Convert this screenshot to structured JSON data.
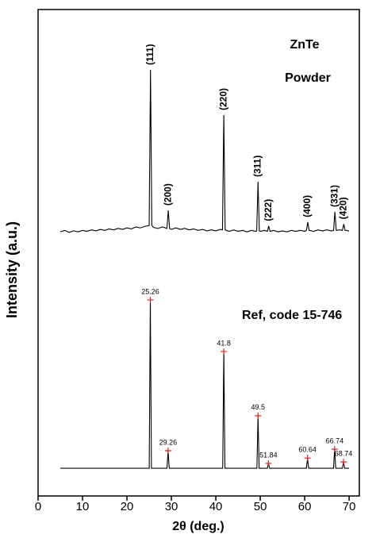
{
  "chart_data": {
    "type": "line",
    "title": "ZnTe",
    "x_label": "2θ (deg.)",
    "y_label": "Intensity (a.u.)",
    "xlim": [
      0,
      72.3
    ],
    "ylim": [
      0,
      100
    ],
    "xticks": [
      0,
      10,
      20,
      30,
      40,
      50,
      60,
      70
    ],
    "series": [
      {
        "name": "Powder",
        "color": "#000000",
        "x": [
          5,
          6,
          7,
          8,
          9,
          10,
          11,
          12,
          13,
          14,
          15,
          16,
          17,
          18,
          19,
          20,
          21,
          22,
          23,
          24,
          25.0,
          25.3,
          25.6,
          26,
          27,
          28,
          29.0,
          29.3,
          29.6,
          30,
          31,
          32,
          33,
          34,
          35,
          36,
          37,
          38,
          39,
          40,
          41,
          41.5,
          41.8,
          42.1,
          43,
          44,
          45,
          46,
          47,
          48,
          49,
          49.2,
          49.5,
          49.8,
          50,
          51,
          51.6,
          51.9,
          52.2,
          53,
          54,
          55,
          56,
          57,
          58,
          59,
          60,
          60.4,
          60.7,
          61.0,
          62,
          63,
          64,
          65,
          66,
          66.5,
          66.8,
          67.1,
          68,
          68.5,
          68.8,
          69.1,
          70
        ],
        "values": [
          54.3,
          54.6,
          54.2,
          54.5,
          54.3,
          54.6,
          54.4,
          54.7,
          54.5,
          54.8,
          54.6,
          54.9,
          54.7,
          55.0,
          54.8,
          55.1,
          54.9,
          55.3,
          55.1,
          55.4,
          55.6,
          87.6,
          55.6,
          55.2,
          55.0,
          55.3,
          55.0,
          58.7,
          55.0,
          54.8,
          55.1,
          54.8,
          55.0,
          54.7,
          54.9,
          54.6,
          54.8,
          54.5,
          54.7,
          54.5,
          54.8,
          54.7,
          78.3,
          54.7,
          54.4,
          54.7,
          54.4,
          54.6,
          54.3,
          54.6,
          54.4,
          54.5,
          64.6,
          54.5,
          54.4,
          54.6,
          54.4,
          55.5,
          54.4,
          54.6,
          54.3,
          54.5,
          54.3,
          54.6,
          54.4,
          54.6,
          54.4,
          54.6,
          56.3,
          54.6,
          54.4,
          54.7,
          54.5,
          54.7,
          54.5,
          54.6,
          58.4,
          54.6,
          54.7,
          54.6,
          55.9,
          54.6,
          54.5
        ]
      },
      {
        "name": "Ref, code 15-746",
        "color": "#000000",
        "marker_color": "#e02020",
        "x": [
          5,
          25.01,
          25.26,
          25.51,
          29.01,
          29.26,
          29.51,
          41.55,
          41.8,
          42.05,
          49.25,
          49.5,
          49.75,
          51.59,
          51.84,
          52.09,
          60.39,
          60.64,
          60.89,
          66.49,
          66.74,
          66.99,
          68.49,
          68.74,
          68.99,
          70
        ],
        "values": [
          5.7,
          5.7,
          40.3,
          5.7,
          5.7,
          9.3,
          5.7,
          5.7,
          29.7,
          5.7,
          5.7,
          16.5,
          5.7,
          5.7,
          6.7,
          5.7,
          5.7,
          7.8,
          5.7,
          5.7,
          9.6,
          5.7,
          5.7,
          7.0,
          5.7,
          5.7
        ]
      }
    ],
    "annotations": [
      {
        "text": "(111)",
        "x": 25.3
      },
      {
        "text": "(200)",
        "x": 29.3
      },
      {
        "text": "(220)",
        "x": 41.8
      },
      {
        "text": "(311)",
        "x": 49.5
      },
      {
        "text": "(222)",
        "x": 51.9
      },
      {
        "text": "(400)",
        "x": 60.7
      },
      {
        "text": "(331)",
        "x": 66.8
      },
      {
        "text": "(420)",
        "x": 68.8
      }
    ]
  }
}
